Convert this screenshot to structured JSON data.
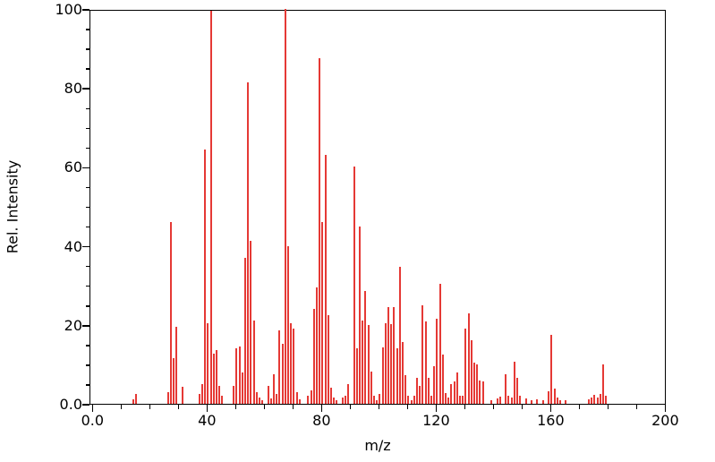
{
  "figure": {
    "background": "#ffffff",
    "axis_color": "#000000"
  },
  "chart_data": {
    "type": "bar",
    "subtype": "mass-spectrum",
    "title": "",
    "xlabel": "m/z",
    "ylabel": "Rel. Intensity",
    "xlim": [
      0,
      200
    ],
    "ylim": [
      0,
      100
    ],
    "grid": false,
    "legend": "none",
    "bar_color": "#e53935",
    "x_major_ticks": [
      0,
      40,
      80,
      120,
      160,
      200
    ],
    "x_tick_labels": [
      "0.0",
      "40",
      "80",
      "120",
      "160",
      "200"
    ],
    "x_minor_step": 10,
    "y_major_ticks": [
      0,
      20,
      40,
      60,
      80,
      100
    ],
    "y_tick_labels": [
      "0.0",
      "20",
      "40",
      "60",
      "80",
      "100"
    ],
    "y_minor_step": 5,
    "peaks": [
      [
        14,
        1.2
      ],
      [
        15,
        2.6
      ],
      [
        26,
        3
      ],
      [
        27,
        46
      ],
      [
        28,
        11.5
      ],
      [
        29,
        19.5
      ],
      [
        31,
        4.3
      ],
      [
        37,
        2.6
      ],
      [
        38,
        5
      ],
      [
        39,
        64.5
      ],
      [
        40,
        20.3
      ],
      [
        41,
        99.6
      ],
      [
        42,
        12.7
      ],
      [
        43,
        13.5
      ],
      [
        44,
        4.6
      ],
      [
        45,
        2
      ],
      [
        49,
        4.5
      ],
      [
        50,
        14
      ],
      [
        51,
        14.5
      ],
      [
        52,
        8
      ],
      [
        53,
        37
      ],
      [
        54,
        81.5
      ],
      [
        55,
        41.3
      ],
      [
        56,
        21.2
      ],
      [
        57,
        2.9
      ],
      [
        58,
        1.5
      ],
      [
        59,
        1
      ],
      [
        61,
        4.6
      ],
      [
        62,
        1.4
      ],
      [
        63,
        7.4
      ],
      [
        64,
        2.6
      ],
      [
        65,
        18.6
      ],
      [
        66,
        15.2
      ],
      [
        67,
        100
      ],
      [
        68,
        40
      ],
      [
        69,
        20.5
      ],
      [
        70,
        19
      ],
      [
        71,
        3
      ],
      [
        72,
        1.2
      ],
      [
        75,
        2
      ],
      [
        76,
        3.5
      ],
      [
        77,
        24
      ],
      [
        78,
        29.5
      ],
      [
        79,
        87.5
      ],
      [
        80,
        46
      ],
      [
        81,
        63
      ],
      [
        82,
        22.5
      ],
      [
        83,
        4
      ],
      [
        84,
        1.5
      ],
      [
        85,
        1
      ],
      [
        87,
        1.5
      ],
      [
        88,
        2
      ],
      [
        89,
        5
      ],
      [
        91,
        60
      ],
      [
        92,
        14
      ],
      [
        93,
        45
      ],
      [
        94,
        21
      ],
      [
        95,
        28.5
      ],
      [
        96,
        20
      ],
      [
        97,
        8.2
      ],
      [
        98,
        2
      ],
      [
        99,
        1
      ],
      [
        100,
        2.5
      ],
      [
        101,
        14.4
      ],
      [
        102,
        20.5
      ],
      [
        103,
        24.6
      ],
      [
        104,
        20.1
      ],
      [
        105,
        24.5
      ],
      [
        106,
        14.1
      ],
      [
        107,
        34.8
      ],
      [
        108,
        15.6
      ],
      [
        109,
        7.3
      ],
      [
        110,
        2
      ],
      [
        111,
        1
      ],
      [
        112,
        2
      ],
      [
        113,
        6.5
      ],
      [
        114,
        4.6
      ],
      [
        115,
        25
      ],
      [
        116,
        20.9
      ],
      [
        117,
        6.5
      ],
      [
        118,
        2
      ],
      [
        119,
        9.5
      ],
      [
        120,
        21.5
      ],
      [
        121,
        30.4
      ],
      [
        122,
        12.5
      ],
      [
        123,
        2.7
      ],
      [
        124,
        1.5
      ],
      [
        125,
        5
      ],
      [
        126,
        5.6
      ],
      [
        127,
        8
      ],
      [
        128,
        2
      ],
      [
        129,
        2
      ],
      [
        130,
        19
      ],
      [
        131,
        23
      ],
      [
        132,
        16
      ],
      [
        133,
        10.5
      ],
      [
        134,
        10
      ],
      [
        135,
        6
      ],
      [
        136,
        5.7
      ],
      [
        139,
        1
      ],
      [
        141,
        1.3
      ],
      [
        142,
        1.8
      ],
      [
        144,
        7.4
      ],
      [
        145,
        2
      ],
      [
        146,
        1.5
      ],
      [
        147,
        10.7
      ],
      [
        148,
        6.5
      ],
      [
        149,
        2
      ],
      [
        151,
        1.3
      ],
      [
        153,
        1
      ],
      [
        155,
        1.2
      ],
      [
        157,
        1
      ],
      [
        159,
        3.1
      ],
      [
        160,
        17.5
      ],
      [
        161,
        3.9
      ],
      [
        162,
        1.5
      ],
      [
        163,
        1
      ],
      [
        165,
        0.8
      ],
      [
        173,
        1.2
      ],
      [
        174,
        1.5
      ],
      [
        175,
        2.2
      ],
      [
        176,
        1.5
      ],
      [
        177,
        2.5
      ],
      [
        178,
        9.9
      ],
      [
        179,
        2
      ]
    ]
  }
}
